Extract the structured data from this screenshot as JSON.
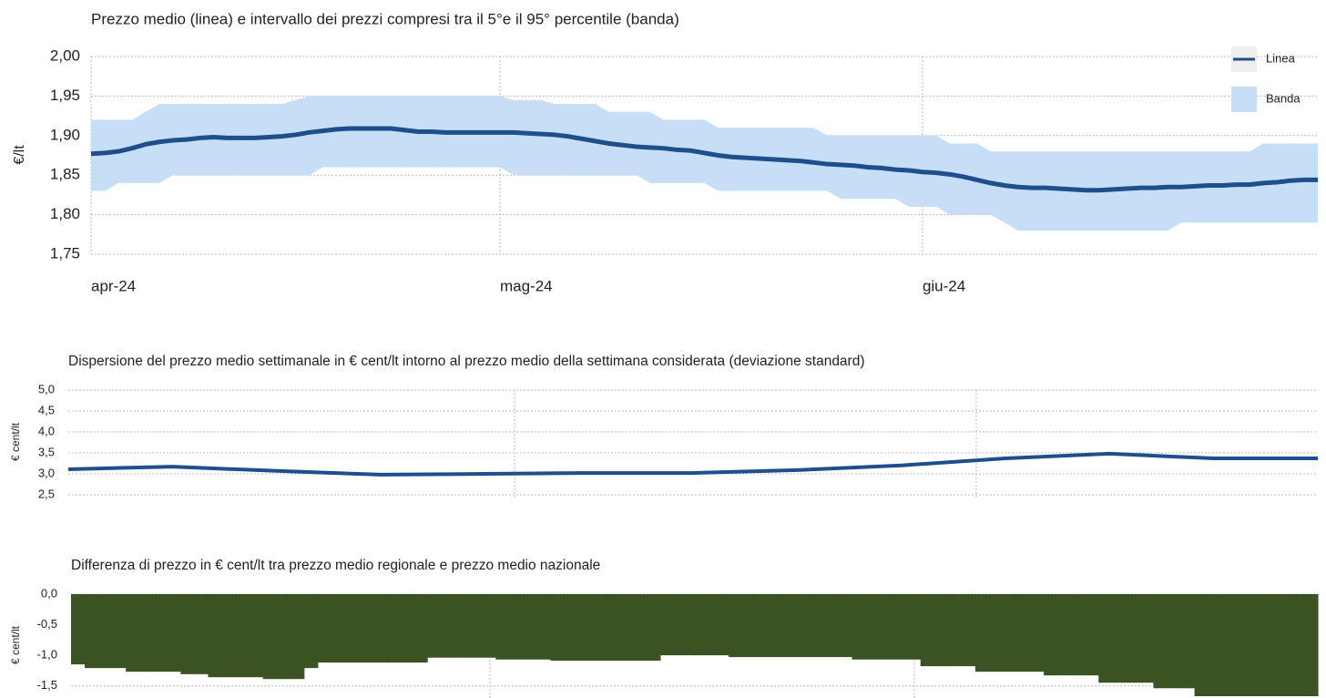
{
  "chart_data": [
    {
      "type": "line",
      "title": "Prezzo medio (linea) e intervallo dei prezzi compresi tra il 5°e il 95° percentile (banda)",
      "y_label": "€/lt",
      "categories": [
        "apr-24",
        null,
        null,
        null,
        null,
        null,
        null,
        null,
        null,
        null,
        null,
        null,
        null,
        null,
        null,
        null,
        null,
        null,
        null,
        null,
        null,
        null,
        null,
        null,
        null,
        null,
        null,
        null,
        null,
        null,
        "mag-24",
        null,
        null,
        null,
        null,
        null,
        null,
        null,
        null,
        null,
        null,
        null,
        null,
        null,
        null,
        null,
        null,
        null,
        null,
        null,
        null,
        null,
        null,
        null,
        null,
        null,
        null,
        null,
        null,
        null,
        null,
        "giu-24",
        null,
        null,
        null,
        null,
        null,
        null,
        null,
        null,
        null,
        null,
        null,
        null,
        null,
        null,
        null,
        null,
        null,
        null,
        null,
        null,
        null,
        null,
        null,
        null,
        null,
        null,
        null,
        null,
        null
      ],
      "series": [
        {
          "name": "Linea",
          "color": "#1f4e8c",
          "values": [
            1.877,
            1.878,
            1.88,
            1.884,
            1.889,
            1.892,
            1.894,
            1.895,
            1.897,
            1.898,
            1.897,
            1.897,
            1.897,
            1.898,
            1.899,
            1.901,
            1.904,
            1.906,
            1.908,
            1.909,
            1.909,
            1.909,
            1.909,
            1.907,
            1.905,
            1.905,
            1.904,
            1.904,
            1.904,
            1.904,
            1.904,
            1.904,
            1.903,
            1.902,
            1.901,
            1.899,
            1.896,
            1.893,
            1.89,
            1.888,
            1.886,
            1.885,
            1.884,
            1.882,
            1.881,
            1.878,
            1.875,
            1.873,
            1.872,
            1.871,
            1.87,
            1.869,
            1.868,
            1.866,
            1.864,
            1.863,
            1.862,
            1.86,
            1.859,
            1.857,
            1.856,
            1.854,
            1.853,
            1.851,
            1.848,
            1.844,
            1.84,
            1.837,
            1.835,
            1.834,
            1.834,
            1.833,
            1.832,
            1.831,
            1.831,
            1.832,
            1.833,
            1.834,
            1.834,
            1.835,
            1.835,
            1.836,
            1.837,
            1.837,
            1.838,
            1.838,
            1.84,
            1.841,
            1.843,
            1.844,
            1.844
          ]
        },
        {
          "name": "Banda",
          "color": "#c6dff7",
          "high": [
            1.92,
            1.92,
            1.92,
            1.92,
            1.93,
            1.94,
            1.94,
            1.94,
            1.94,
            1.94,
            1.94,
            1.94,
            1.94,
            1.94,
            1.94,
            1.945,
            1.95,
            1.95,
            1.95,
            1.95,
            1.95,
            1.95,
            1.95,
            1.95,
            1.95,
            1.95,
            1.95,
            1.95,
            1.95,
            1.95,
            1.95,
            1.945,
            1.945,
            1.945,
            1.94,
            1.94,
            1.94,
            1.94,
            1.93,
            1.93,
            1.93,
            1.93,
            1.92,
            1.92,
            1.92,
            1.92,
            1.91,
            1.91,
            1.91,
            1.91,
            1.91,
            1.91,
            1.91,
            1.91,
            1.9,
            1.9,
            1.9,
            1.9,
            1.9,
            1.9,
            1.9,
            1.9,
            1.9,
            1.89,
            1.89,
            1.89,
            1.88,
            1.88,
            1.88,
            1.88,
            1.88,
            1.88,
            1.88,
            1.88,
            1.88,
            1.88,
            1.88,
            1.88,
            1.88,
            1.88,
            1.88,
            1.88,
            1.88,
            1.88,
            1.88,
            1.88,
            1.89,
            1.89,
            1.89,
            1.89,
            1.89
          ],
          "low": [
            1.83,
            1.83,
            1.84,
            1.84,
            1.84,
            1.84,
            1.85,
            1.85,
            1.85,
            1.85,
            1.85,
            1.85,
            1.85,
            1.85,
            1.85,
            1.85,
            1.85,
            1.86,
            1.86,
            1.86,
            1.86,
            1.86,
            1.86,
            1.86,
            1.86,
            1.86,
            1.86,
            1.86,
            1.86,
            1.86,
            1.86,
            1.85,
            1.85,
            1.85,
            1.85,
            1.85,
            1.85,
            1.85,
            1.85,
            1.85,
            1.85,
            1.84,
            1.84,
            1.84,
            1.84,
            1.84,
            1.83,
            1.83,
            1.83,
            1.83,
            1.83,
            1.83,
            1.83,
            1.83,
            1.83,
            1.82,
            1.82,
            1.82,
            1.82,
            1.82,
            1.81,
            1.81,
            1.81,
            1.8,
            1.8,
            1.8,
            1.8,
            1.79,
            1.78,
            1.78,
            1.78,
            1.78,
            1.78,
            1.78,
            1.78,
            1.78,
            1.78,
            1.78,
            1.78,
            1.78,
            1.79,
            1.79,
            1.79,
            1.79,
            1.79,
            1.79,
            1.79,
            1.79,
            1.79,
            1.79,
            1.79
          ]
        }
      ],
      "ylim": [
        1.75,
        2.0
      ],
      "yticks": [
        {
          "value": 1.75,
          "label": "1,75"
        },
        {
          "value": 1.8,
          "label": "1,80"
        },
        {
          "value": 1.85,
          "label": "1,85"
        },
        {
          "value": 1.9,
          "label": "1,90"
        },
        {
          "value": 1.95,
          "label": "1,95"
        },
        {
          "value": 2.0,
          "label": "2,00"
        }
      ],
      "grid": true,
      "legend": "top-right"
    },
    {
      "type": "line",
      "title": "Dispersione del prezzo medio settimanale in € cent/lt intorno al prezzo medio della settimana considerata (deviazione standard)",
      "y_label": "€ cent/lt",
      "series": [
        {
          "color": "#1f4e8c",
          "values": [
            3.11,
            3.17,
            3.07,
            2.98,
            3.0,
            3.02,
            3.02,
            3.09,
            3.2,
            3.37,
            3.48,
            3.37,
            3.37
          ]
        }
      ],
      "ylim": [
        2.5,
        5.0
      ],
      "yticks": [
        {
          "value": 2.5,
          "label": "2,5"
        },
        {
          "value": 3.0,
          "label": "3,0"
        },
        {
          "value": 3.5,
          "label": "3,5"
        },
        {
          "value": 4.0,
          "label": "4,0"
        },
        {
          "value": 4.5,
          "label": "4,5"
        },
        {
          "value": 5.0,
          "label": "5,0"
        }
      ],
      "grid": true
    },
    {
      "type": "bar",
      "title": "Differenza di prezzo in € cent/lt tra prezzo medio regionale e prezzo medio nazionale",
      "y_label": "€ cent/lt",
      "color": "#3b5323",
      "values": [
        -1.15,
        -1.21,
        -1.21,
        -1.21,
        -1.27,
        -1.27,
        -1.27,
        -1.27,
        -1.31,
        -1.31,
        -1.36,
        -1.36,
        -1.36,
        -1.36,
        -1.39,
        -1.39,
        -1.39,
        -1.21,
        -1.12,
        -1.12,
        -1.12,
        -1.12,
        -1.12,
        -1.12,
        -1.12,
        -1.12,
        -1.04,
        -1.04,
        -1.04,
        -1.04,
        -1.04,
        -1.07,
        -1.07,
        -1.07,
        -1.07,
        -1.09,
        -1.09,
        -1.09,
        -1.09,
        -1.09,
        -1.09,
        -1.09,
        -1.09,
        -1.0,
        -1.0,
        -1.0,
        -1.0,
        -1.0,
        -1.03,
        -1.03,
        -1.03,
        -1.03,
        -1.03,
        -1.03,
        -1.03,
        -1.03,
        -1.03,
        -1.07,
        -1.07,
        -1.07,
        -1.07,
        -1.07,
        -1.18,
        -1.18,
        -1.18,
        -1.18,
        -1.27,
        -1.27,
        -1.27,
        -1.27,
        -1.27,
        -1.33,
        -1.33,
        -1.33,
        -1.33,
        -1.45,
        -1.45,
        -1.45,
        -1.45,
        -1.54,
        -1.54,
        -1.54,
        -1.67,
        -1.67,
        -1.67,
        -1.67,
        -1.67,
        -1.67,
        -1.67,
        -1.67,
        -1.67
      ],
      "ylim": [
        -1.7,
        0
      ],
      "yticks": [
        {
          "value": -1.5,
          "label": "-1,5"
        },
        {
          "value": -1.0,
          "label": "-1,0"
        },
        {
          "value": -0.5,
          "label": "-0,5"
        },
        {
          "value": 0,
          "label": "0,0"
        }
      ],
      "grid": true
    }
  ]
}
